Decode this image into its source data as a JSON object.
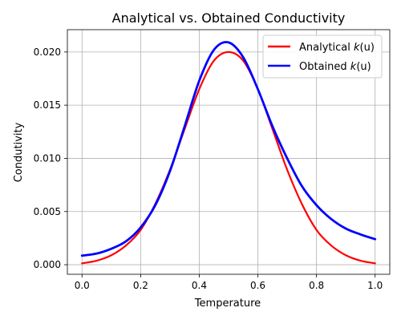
{
  "chart_data": {
    "type": "line",
    "title": "Analytical vs. Obtained Conductivity",
    "xlabel": "Temperature",
    "ylabel": "Condutivity",
    "xlim": [
      -0.05,
      1.05
    ],
    "ylim": [
      -0.0009,
      0.0221
    ],
    "xticks": [
      0.0,
      0.2,
      0.4,
      0.6,
      0.8,
      1.0
    ],
    "xtick_labels": [
      "0.0",
      "0.2",
      "0.4",
      "0.6",
      "0.8",
      "1.0"
    ],
    "yticks": [
      0.0,
      0.005,
      0.01,
      0.015,
      0.02
    ],
    "ytick_labels": [
      "0.000",
      "0.005",
      "0.010",
      "0.015",
      "0.020"
    ],
    "grid": true,
    "legend_position": "top-right",
    "x": [
      0.0,
      0.05,
      0.1,
      0.15,
      0.2,
      0.25,
      0.3,
      0.35,
      0.4,
      0.45,
      0.5,
      0.55,
      0.6,
      0.65,
      0.7,
      0.75,
      0.8,
      0.85,
      0.9,
      0.95,
      1.0
    ],
    "series": [
      {
        "name_prefix": "Analytical ",
        "name_math": "k",
        "name_suffix": "(u)",
        "color": "#ff0000",
        "values": [
          0.00013,
          0.00038,
          0.00089,
          0.00181,
          0.00327,
          0.00572,
          0.00892,
          0.01274,
          0.01651,
          0.01918,
          0.02,
          0.01918,
          0.01651,
          0.01274,
          0.00892,
          0.00572,
          0.00327,
          0.00181,
          0.00089,
          0.00038,
          0.00013
        ]
      },
      {
        "name_prefix": "Obtained ",
        "name_math": "k",
        "name_suffix": "(u)",
        "color": "#0000ff",
        "values": [
          0.00085,
          0.00105,
          0.0015,
          0.0022,
          0.0035,
          0.0056,
          0.0088,
          0.013,
          0.0173,
          0.0202,
          0.0209,
          0.0195,
          0.0165,
          0.013,
          0.01,
          0.0074,
          0.0056,
          0.0043,
          0.0034,
          0.00285,
          0.0024
        ]
      }
    ]
  }
}
